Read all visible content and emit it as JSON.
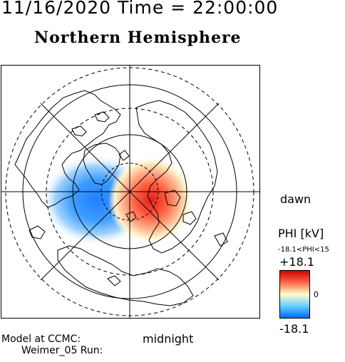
{
  "header": {
    "date_time": "11/16/2020 Time = 22:00:00",
    "hemisphere": "Northern Hemisphere"
  },
  "map": {
    "labels": {
      "dawn": "dawn",
      "midnight": "midnight"
    },
    "field": {
      "dusk_cell_color": "#2f8cff",
      "dawn_cell_color": "#e8281e"
    }
  },
  "colorbar": {
    "title": "PHI [kV]",
    "range_label": "-18.1<PHI<15",
    "max_label": "+18.1",
    "mid_label": "0",
    "min_label": "-18.1",
    "colors": [
      "#cc0000",
      "#ff6644",
      "#ffffcc",
      "#66ccff",
      "#0066ff"
    ]
  },
  "footer": {
    "model_line1": "Model at CCMC:",
    "model_line2": "Weimer_05 Run:"
  }
}
